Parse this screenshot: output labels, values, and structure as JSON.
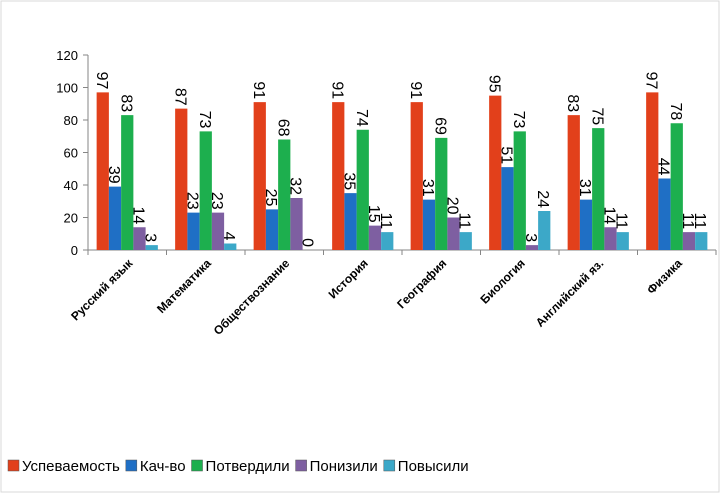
{
  "chart_data": {
    "type": "bar",
    "categories": [
      "Русский язык",
      "Математика",
      "Обществознание",
      "История",
      "География",
      "Биология",
      "Английский яз.",
      "Физика"
    ],
    "series": [
      {
        "name": "Успеваемость",
        "color": "#e2401b",
        "values": [
          97,
          87,
          91,
          91,
          91,
          95,
          83,
          97
        ]
      },
      {
        "name": "Кач-во",
        "color": "#1f6fc5",
        "values": [
          39,
          23,
          25,
          35,
          31,
          51,
          31,
          44
        ]
      },
      {
        "name": "Потвердили",
        "color": "#1daf4e",
        "values": [
          83,
          73,
          68,
          74,
          69,
          73,
          75,
          78
        ]
      },
      {
        "name": "Понизили",
        "color": "#7e5fa1",
        "values": [
          14,
          23,
          32,
          15,
          20,
          3,
          14,
          11
        ]
      },
      {
        "name": "Повысили",
        "color": "#3ca8c8",
        "values": [
          3,
          4,
          0,
          11,
          11,
          24,
          11,
          11
        ]
      }
    ],
    "ylim": [
      0,
      120
    ],
    "yticks": [
      0,
      20,
      40,
      60,
      80,
      100,
      120
    ],
    "grid": false,
    "legend": "bottom"
  }
}
